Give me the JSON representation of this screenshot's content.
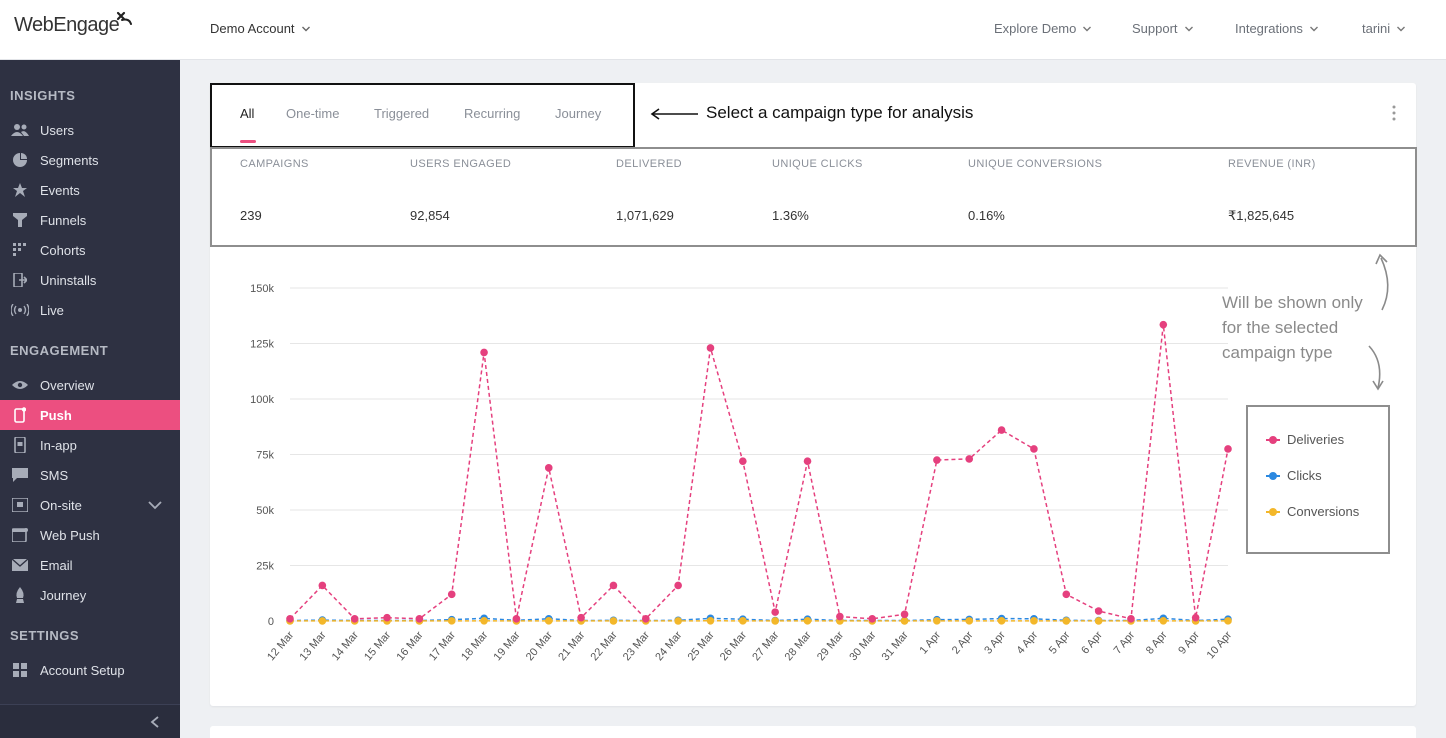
{
  "header": {
    "logo_text": "WebEngage",
    "account": "Demo Account",
    "nav": [
      "Explore Demo",
      "Support",
      "Integrations",
      "tarini"
    ]
  },
  "sidebar": {
    "sections": [
      {
        "title": "INSIGHTS",
        "items": [
          {
            "label": "Users",
            "icon": "users-icon"
          },
          {
            "label": "Segments",
            "icon": "pie-icon"
          },
          {
            "label": "Events",
            "icon": "star-icon"
          },
          {
            "label": "Funnels",
            "icon": "funnel-icon"
          },
          {
            "label": "Cohorts",
            "icon": "grid-icon"
          },
          {
            "label": "Uninstalls",
            "icon": "exit-icon"
          },
          {
            "label": "Live",
            "icon": "broadcast-icon"
          }
        ]
      },
      {
        "title": "ENGAGEMENT",
        "items": [
          {
            "label": "Overview",
            "icon": "eye-icon"
          },
          {
            "label": "Push",
            "icon": "phone-icon",
            "active": true
          },
          {
            "label": "In-app",
            "icon": "inapp-icon"
          },
          {
            "label": "SMS",
            "icon": "chat-icon"
          },
          {
            "label": "On-site",
            "icon": "onsite-icon"
          },
          {
            "label": "Web Push",
            "icon": "webpush-icon"
          },
          {
            "label": "Email",
            "icon": "mail-icon"
          },
          {
            "label": "Journey",
            "icon": "journey-icon"
          }
        ]
      },
      {
        "title": "SETTINGS",
        "items": [
          {
            "label": "Account Setup",
            "icon": "apps-icon"
          }
        ]
      }
    ]
  },
  "tabs": [
    "All",
    "One-time",
    "Triggered",
    "Recurring",
    "Journey"
  ],
  "annotation": "Select a campaign type for analysis",
  "metrics": {
    "headers": [
      "CAMPAIGNS",
      "USERS ENGAGED",
      "DELIVERED",
      "UNIQUE CLICKS",
      "UNIQUE CONVERSIONS",
      "REVENUE (INR)"
    ],
    "values": [
      "239",
      "92,854",
      "1,071,629",
      "1.36%",
      "0.16%",
      "₹1,825,645"
    ]
  },
  "note_lines": [
    "Will be shown only",
    "for the selected",
    "campaign type"
  ],
  "colors": {
    "accent": "#ec4f80",
    "deliveries": "#e5407e",
    "clicks": "#2b88e0",
    "conversions": "#f3b72a"
  },
  "chart_data": {
    "type": "line",
    "title": "",
    "xlabel": "",
    "ylabel": "",
    "ylim": [
      0,
      150000
    ],
    "yticks": [
      "0",
      "25k",
      "50k",
      "75k",
      "100k",
      "125k",
      "150k"
    ],
    "categories": [
      "12 Mar",
      "13 Mar",
      "14 Mar",
      "15 Mar",
      "16 Mar",
      "17 Mar",
      "18 Mar",
      "19 Mar",
      "20 Mar",
      "21 Mar",
      "22 Mar",
      "23 Mar",
      "24 Mar",
      "25 Mar",
      "26 Mar",
      "27 Mar",
      "28 Mar",
      "29 Mar",
      "30 Mar",
      "31 Mar",
      "1 Apr",
      "2 Apr",
      "3 Apr",
      "4 Apr",
      "5 Apr",
      "6 Apr",
      "7 Apr",
      "8 Apr",
      "9 Apr",
      "10 Apr"
    ],
    "series": [
      {
        "name": "Deliveries",
        "values": [
          1000,
          16000,
          1000,
          1500,
          1000,
          12000,
          121000,
          1000,
          69000,
          1500,
          16000,
          1000,
          16000,
          123000,
          72000,
          4000,
          72000,
          2000,
          1000,
          3000,
          72500,
          73000,
          86000,
          77500,
          12000,
          4500,
          1000,
          133500,
          1500,
          77500
        ]
      },
      {
        "name": "Clicks",
        "values": [
          200,
          400,
          200,
          200,
          200,
          600,
          1200,
          300,
          1000,
          200,
          300,
          200,
          300,
          1200,
          800,
          200,
          800,
          200,
          200,
          200,
          600,
          700,
          1100,
          1000,
          300,
          200,
          200,
          1200,
          200,
          800
        ]
      },
      {
        "name": "Conversions",
        "values": [
          30,
          50,
          30,
          30,
          30,
          60,
          90,
          40,
          80,
          30,
          40,
          30,
          40,
          100,
          70,
          30,
          70,
          30,
          30,
          30,
          60,
          60,
          80,
          70,
          40,
          30,
          30,
          90,
          30,
          60
        ]
      }
    ],
    "grid": true,
    "legend": "right"
  }
}
